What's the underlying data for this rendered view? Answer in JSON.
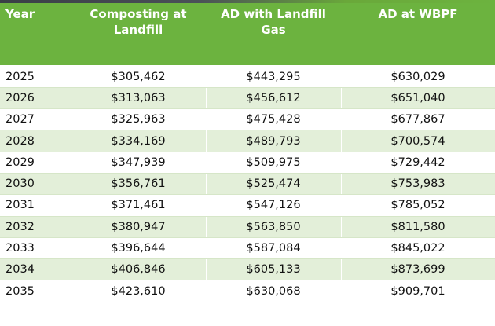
{
  "table": {
    "headers": {
      "year": "Year",
      "composting": "Composting at Landfill",
      "ad_landfill": "AD with Landfill Gas",
      "ad_wbpf": "AD at WBPF"
    },
    "rows": [
      {
        "year": "2025",
        "composting": "$305,462",
        "ad_landfill": "$443,295",
        "ad_wbpf": "$630,029"
      },
      {
        "year": "2026",
        "composting": "$313,063",
        "ad_landfill": "$456,612",
        "ad_wbpf": "$651,040"
      },
      {
        "year": "2027",
        "composting": "$325,963",
        "ad_landfill": "$475,428",
        "ad_wbpf": "$677,867"
      },
      {
        "year": "2028",
        "composting": "$334,169",
        "ad_landfill": "$489,793",
        "ad_wbpf": "$700,574"
      },
      {
        "year": "2029",
        "composting": "$347,939",
        "ad_landfill": "$509,975",
        "ad_wbpf": "$729,442"
      },
      {
        "year": "2030",
        "composting": "$356,761",
        "ad_landfill": "$525,474",
        "ad_wbpf": "$753,983"
      },
      {
        "year": "2031",
        "composting": "$371,461",
        "ad_landfill": "$547,126",
        "ad_wbpf": "$785,052"
      },
      {
        "year": "2032",
        "composting": "$380,947",
        "ad_landfill": "$563,850",
        "ad_wbpf": "$811,580"
      },
      {
        "year": "2033",
        "composting": "$396,644",
        "ad_landfill": "$587,084",
        "ad_wbpf": "$845,022"
      },
      {
        "year": "2034",
        "composting": "$406,846",
        "ad_landfill": "$605,133",
        "ad_wbpf": "$873,699"
      },
      {
        "year": "2035",
        "composting": "$423,610",
        "ad_landfill": "$630,068",
        "ad_wbpf": "$909,701"
      }
    ]
  },
  "colors": {
    "header_bg": "#6cb33f",
    "band_bg": "#e3efd9"
  }
}
